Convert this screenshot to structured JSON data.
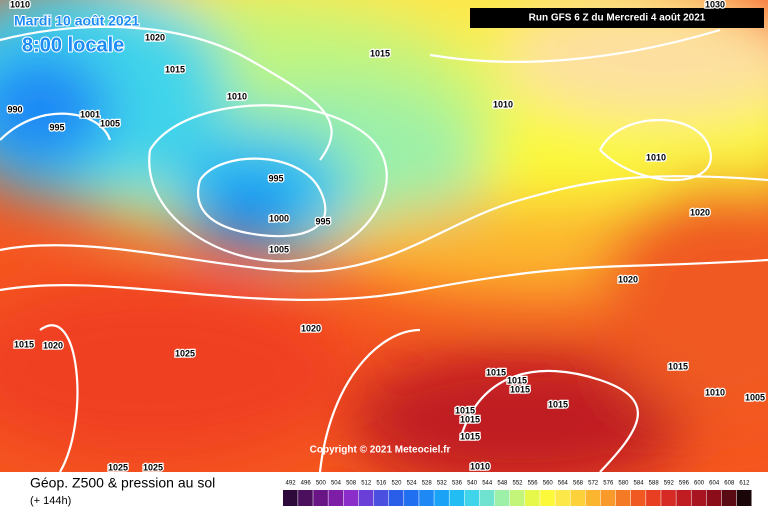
{
  "header": {
    "date": "Mardi 10 août 2021",
    "time": "8:00 locale",
    "run": "Run GFS 6 Z du Mercredi 4 août 2021"
  },
  "copyright": "Copyright © 2021 Meteociel.fr",
  "legend": {
    "title": "Géop. Z500 & pression au sol",
    "subtitle": "(+ 144h)"
  },
  "isobar_labels": [
    1010,
    1020,
    1015,
    1010,
    990,
    995,
    1001,
    1005,
    1015,
    1010,
    1010,
    995,
    1000,
    995,
    1005,
    1020,
    1020,
    1020,
    1015,
    1020,
    1025,
    1015,
    1015,
    1015,
    1015,
    1010,
    1005,
    1015,
    1015,
    1015,
    1015,
    1025,
    1025,
    1010,
    1030
  ],
  "colorbar": {
    "values": [
      492,
      496,
      500,
      504,
      508,
      512,
      516,
      520,
      524,
      528,
      532,
      536,
      540,
      544,
      548,
      552,
      556,
      560,
      564,
      568,
      572,
      576,
      580,
      584,
      588,
      592,
      596,
      600,
      604,
      608,
      612
    ],
    "colors": [
      "#2d0a3a",
      "#4b0f5e",
      "#6a1585",
      "#7e1ea6",
      "#8a2dc9",
      "#6a3fd8",
      "#4a4fe0",
      "#2a5ee8",
      "#1f6ff0",
      "#1e88f5",
      "#1aa3f6",
      "#22bdf2",
      "#3fd4ea",
      "#6fe3d0",
      "#9cf0a8",
      "#c3f57a",
      "#e6f84a",
      "#fbf93a",
      "#fde84a",
      "#fdd13a",
      "#fcb52f",
      "#f99a2a",
      "#f57a25",
      "#f05a22",
      "#e83e22",
      "#d62a24",
      "#c01d22",
      "#a8141f",
      "#8b0d1a",
      "#5a0a12",
      "#1a0508"
    ]
  }
}
